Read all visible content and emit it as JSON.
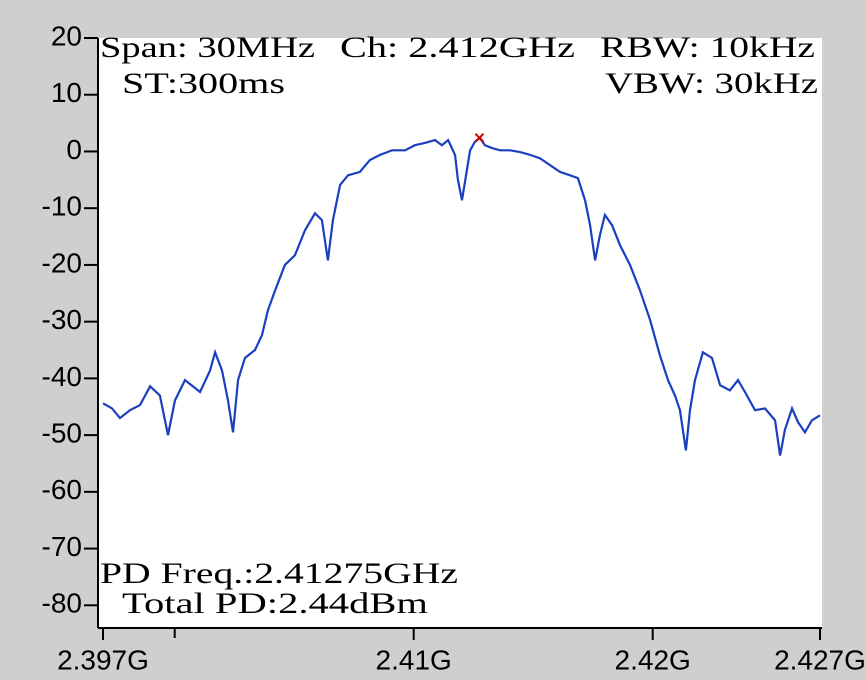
{
  "chart_data": {
    "type": "line",
    "annotations": [
      "Span: 30MHz",
      "Ch: 2.412GHz",
      "RBW: 10kHz",
      "ST:300ms",
      "VBW: 30kHz",
      "PD Freq.:2.41275GHz",
      "Total PD:2.44dBm"
    ],
    "xlim": [
      2.397,
      2.427
    ],
    "ylim": [
      -84,
      20
    ],
    "xticks": [
      {
        "value": 2.397,
        "label": "2.397G"
      },
      {
        "value": 2.41,
        "label": "2.41G"
      },
      {
        "value": 2.42,
        "label": "2.42G"
      },
      {
        "value": 2.427,
        "label": "2.427G"
      }
    ],
    "xticks_minor": [
      2.4
    ],
    "yticks": [
      20,
      10,
      0,
      -10,
      -20,
      -30,
      -40,
      -50,
      -60,
      -70,
      -80
    ],
    "marker": {
      "x": 2.41275,
      "y": 2.4,
      "color": "#cc0000"
    },
    "series": [
      {
        "color": "#1a3fbf",
        "x": [
          2.397,
          2.39738,
          2.39771,
          2.39813,
          2.39855,
          2.39897,
          2.39938,
          2.39972,
          2.40001,
          2.40043,
          2.40085,
          2.40106,
          2.40148,
          2.40169,
          2.40198,
          2.40223,
          2.40244,
          2.40265,
          2.40294,
          2.40336,
          2.40365,
          2.4039,
          2.4042,
          2.40461,
          2.40503,
          2.40545,
          2.40587,
          2.40616,
          2.40641,
          2.40662,
          2.40692,
          2.40725,
          2.40775,
          2.40817,
          2.40859,
          2.40909,
          2.40964,
          2.41005,
          2.41047,
          2.41089,
          2.41118,
          2.41144,
          2.41173,
          2.41185,
          2.41202,
          2.41219,
          2.41236,
          2.41256,
          2.41277,
          2.41298,
          2.41328,
          2.41361,
          2.41403,
          2.41445,
          2.41487,
          2.41528,
          2.4157,
          2.41612,
          2.41654,
          2.41687,
          2.41717,
          2.41738,
          2.41759,
          2.41779,
          2.418,
          2.4183,
          2.41863,
          2.41905,
          2.41947,
          2.41989,
          2.4203,
          2.42064,
          2.42093,
          2.42114,
          2.42139,
          2.42156,
          2.42177,
          2.4221,
          2.42248,
          2.42282,
          2.42323,
          2.42357,
          2.42386,
          2.42428,
          2.4247,
          2.42512,
          2.42533,
          2.42553,
          2.42583,
          2.42608,
          2.42637,
          2.42666,
          2.427
        ],
        "values": [
          -44.4,
          -45.3,
          -47.0,
          -45.6,
          -44.7,
          -41.4,
          -43.0,
          -50.0,
          -43.9,
          -40.3,
          -41.7,
          -42.4,
          -38.6,
          -35.4,
          -38.6,
          -43.9,
          -49.5,
          -40.3,
          -36.4,
          -35.0,
          -32.4,
          -28.0,
          -24.5,
          -20.0,
          -18.3,
          -13.9,
          -10.9,
          -12.1,
          -19.2,
          -12.1,
          -5.9,
          -4.2,
          -3.6,
          -1.5,
          -0.6,
          0.2,
          0.2,
          1.1,
          1.5,
          2.0,
          1.1,
          2.0,
          -0.6,
          -5.0,
          -8.6,
          -4.2,
          0.2,
          1.7,
          2.4,
          1.1,
          0.6,
          0.2,
          0.2,
          -0.1,
          -0.6,
          -1.2,
          -2.4,
          -3.6,
          -4.2,
          -4.7,
          -8.6,
          -13.0,
          -19.2,
          -14.8,
          -11.2,
          -13.0,
          -16.5,
          -20.0,
          -24.5,
          -29.7,
          -35.9,
          -40.3,
          -43.0,
          -45.6,
          -52.7,
          -45.6,
          -40.3,
          -35.4,
          -36.4,
          -41.2,
          -42.1,
          -40.3,
          -42.4,
          -45.6,
          -45.3,
          -47.4,
          -53.6,
          -49.1,
          -45.3,
          -47.7,
          -49.5,
          -47.4,
          -46.5
        ]
      }
    ]
  }
}
